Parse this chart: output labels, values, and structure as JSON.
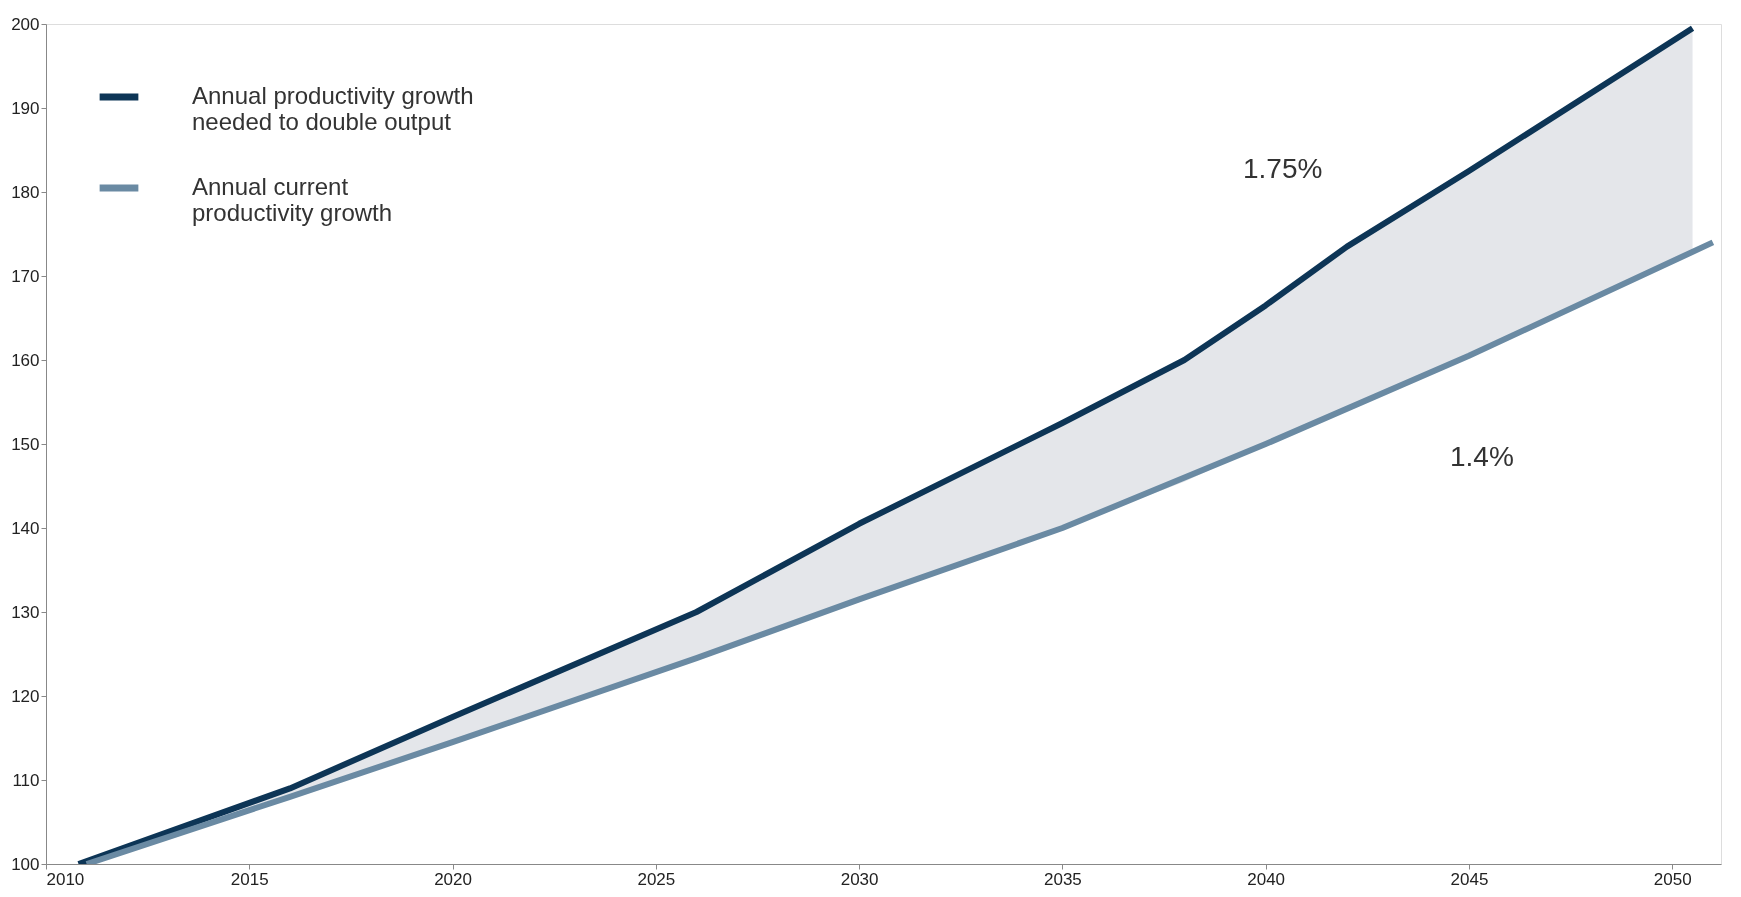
{
  "chart_data": {
    "type": "line",
    "series": [
      {
        "name": "Annual productivity growth needed to double output",
        "color": "#0d3556",
        "x": [
          2010.8,
          2016,
          2020,
          2026,
          2030,
          2035,
          2038,
          2040,
          2042,
          2045,
          2050.5
        ],
        "values": [
          100,
          109,
          117.5,
          130,
          140.5,
          152.5,
          160,
          166.5,
          173.5,
          182.5,
          199.5
        ],
        "lower": [
          100,
          108,
          114.5,
          124.5,
          131.5,
          140,
          145.5,
          150,
          154,
          160.5,
          173
        ],
        "upper": [
          100,
          109,
          117.5,
          130,
          140.5,
          152.5,
          160,
          166.5,
          173.5,
          182.5,
          199.5
        ]
      },
      {
        "name": "Annual current productivity growth",
        "color": "#6a8aa3",
        "x": [
          2011,
          2016,
          2020,
          2026,
          2030,
          2035,
          2040,
          2045,
          2051
        ],
        "values": [
          100,
          108,
          114.5,
          124.5,
          131.5,
          140,
          150,
          160.5,
          174
        ]
      }
    ],
    "xlim": [
      2010,
      2051.2
    ],
    "xticks": [
      2010,
      2015,
      2020,
      2025,
      2030,
      2035,
      2040,
      2045,
      2050
    ],
    "ylim": [
      100,
      200
    ],
    "yticks": [
      100,
      110,
      120,
      130,
      140,
      150,
      160,
      170,
      180,
      190,
      200
    ],
    "annotations": [
      "1.75%",
      "1.4%"
    ],
    "legend": "top left",
    "grid": false,
    "marker": "none",
    "line_style": "solid"
  }
}
